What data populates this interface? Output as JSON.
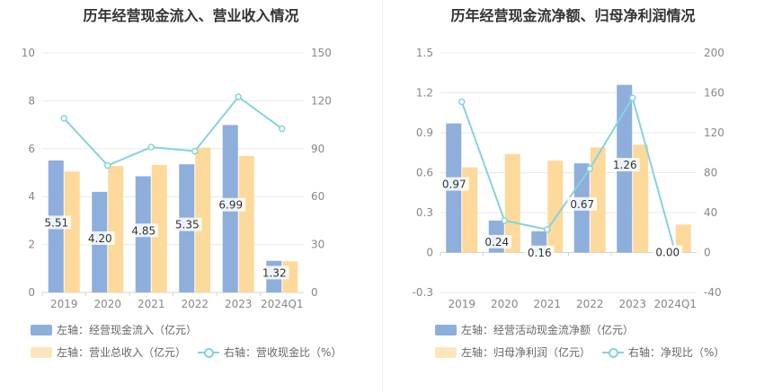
{
  "chart_data": [
    {
      "type": "bar",
      "title": "历年经营现金流入、营业收入情况",
      "categories": [
        "2019",
        "2020",
        "2021",
        "2022",
        "2023",
        "2024Q1"
      ],
      "series": [
        {
          "name": "左轴：经营现金流入（亿元）",
          "axis": "left",
          "kind": "bar",
          "color": "#8eaedc",
          "values": [
            5.51,
            4.2,
            4.85,
            5.35,
            6.99,
            1.32
          ],
          "labels": [
            "5.51",
            "4.20",
            "4.85",
            "5.35",
            "6.99",
            "1.32"
          ]
        },
        {
          "name": "左轴：营业总收入（亿元）",
          "axis": "left",
          "kind": "bar",
          "color": "#fdd99b",
          "values": [
            5.05,
            5.28,
            5.32,
            6.05,
            5.7,
            1.3
          ]
        },
        {
          "name": "右轴：营收现金比（%）",
          "axis": "right",
          "kind": "line",
          "color": "#86d3dc",
          "values": [
            109,
            79.5,
            91,
            88.5,
            122.5,
            102.5
          ]
        }
      ],
      "yleft": {
        "min": 0,
        "max": 10,
        "ticks": [
          "0",
          "2",
          "4",
          "6",
          "8",
          "10"
        ]
      },
      "yright": {
        "min": 0,
        "max": 150,
        "ticks": [
          "0",
          "30",
          "60",
          "90",
          "120",
          "150"
        ]
      },
      "grid": true,
      "legend": "bottom"
    },
    {
      "type": "bar",
      "title": "历年经营现金流净额、归母净利润情况",
      "categories": [
        "2019",
        "2020",
        "2021",
        "2022",
        "2023",
        "2024Q1"
      ],
      "series": [
        {
          "name": "左轴：经营活动现金流净额（亿元）",
          "axis": "left",
          "kind": "bar",
          "color": "#8eaedc",
          "values": [
            0.97,
            0.24,
            0.16,
            0.67,
            1.26,
            0.0
          ],
          "labels": [
            "0.97",
            "0.24",
            "0.16",
            "0.67",
            "1.26",
            "0.00"
          ]
        },
        {
          "name": "左轴：归母净利润（亿元）",
          "axis": "left",
          "kind": "bar",
          "color": "#fdd99b",
          "values": [
            0.64,
            0.74,
            0.69,
            0.79,
            0.81,
            0.21
          ]
        },
        {
          "name": "右轴：净现比（%）",
          "axis": "right",
          "kind": "line",
          "color": "#86d3dc",
          "values": [
            151,
            32,
            23,
            84,
            155,
            0
          ]
        }
      ],
      "yleft": {
        "min": -0.3,
        "max": 1.5,
        "ticks": [
          "-0.3",
          "0",
          "0.3",
          "0.6",
          "0.9",
          "1.2",
          "1.5"
        ]
      },
      "yright": {
        "min": -40,
        "max": 200,
        "ticks": [
          "-40",
          "0",
          "40",
          "80",
          "120",
          "160",
          "200"
        ]
      },
      "grid": true,
      "legend": "bottom"
    }
  ]
}
